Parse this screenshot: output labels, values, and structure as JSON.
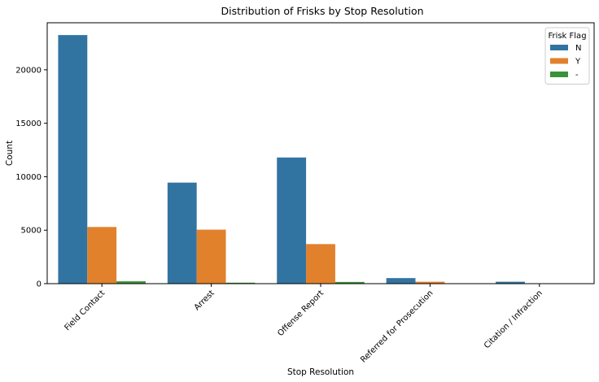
{
  "chart_data": {
    "type": "bar",
    "title": "Distribution of Frisks by Stop Resolution",
    "xlabel": "Stop Resolution",
    "ylabel": "Count",
    "categories": [
      "Field Contact",
      "Arrest",
      "Offense Report",
      "Referred for Prosecution",
      "Citation / Infraction"
    ],
    "series": [
      {
        "name": "N",
        "color": "#3274a1",
        "values": [
          23250,
          9450,
          11800,
          520,
          180
        ]
      },
      {
        "name": "Y",
        "color": "#e1812c",
        "values": [
          5300,
          5050,
          3700,
          180,
          20
        ]
      },
      {
        "name": "-",
        "color": "#3a923a",
        "values": [
          220,
          90,
          160,
          15,
          5
        ]
      }
    ],
    "ylim": [
      0,
      24400
    ],
    "yticks": [
      0,
      5000,
      10000,
      15000,
      20000
    ],
    "grid": false,
    "legend": {
      "title": "Frisk Flag",
      "position": "top-right"
    }
  }
}
